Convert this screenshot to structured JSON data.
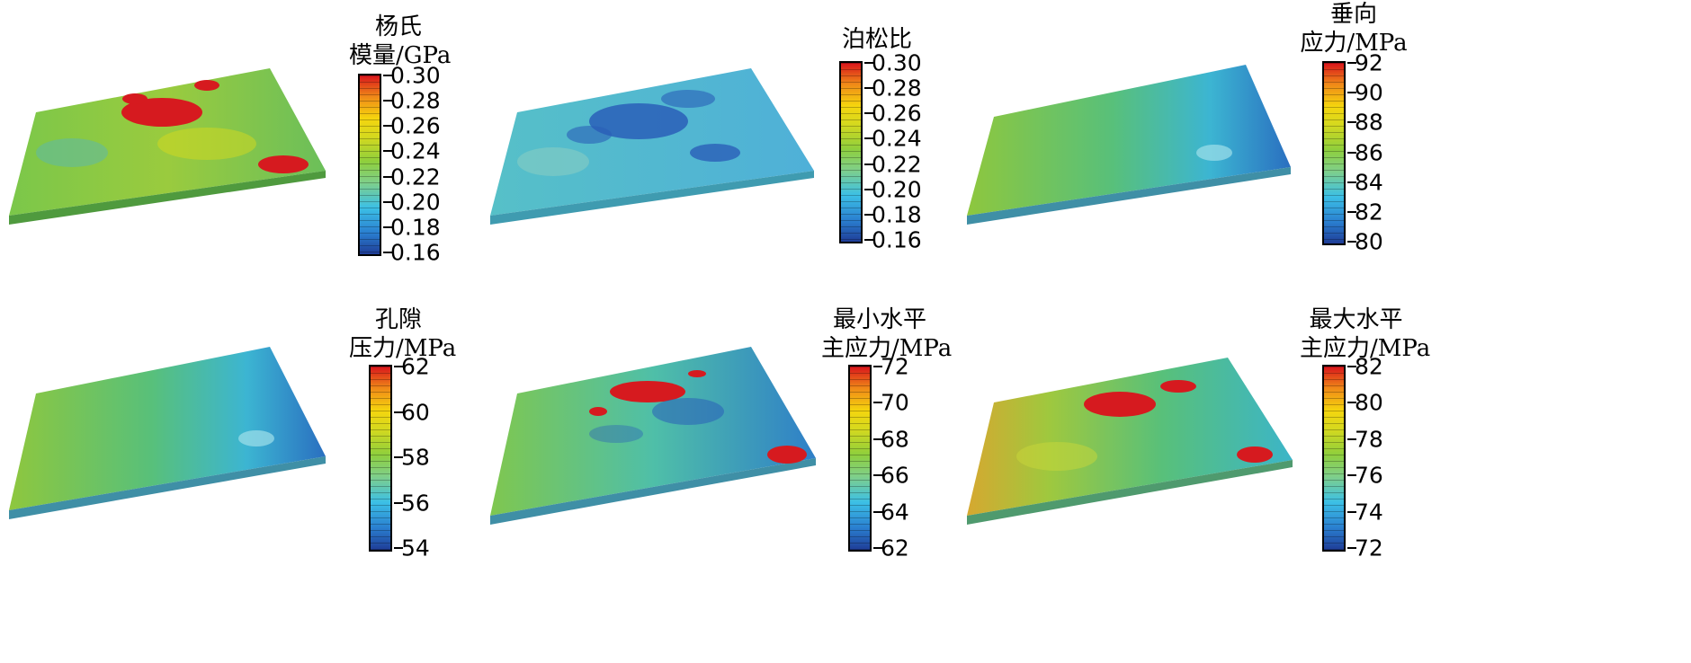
{
  "panels": [
    {
      "id": "youngs-modulus",
      "title_lines": [
        "杨氏",
        "模量/GPa"
      ],
      "ticks": [
        "0.30",
        "0.28",
        "0.26",
        "0.24",
        "0.22",
        "0.20",
        "0.18",
        "0.16"
      ],
      "field": "patchy-high"
    },
    {
      "id": "poisson-ratio",
      "title_lines": [
        "泊松比"
      ],
      "ticks": [
        "0.30",
        "0.28",
        "0.26",
        "0.24",
        "0.22",
        "0.20",
        "0.18",
        "0.16"
      ],
      "field": "patchy-low"
    },
    {
      "id": "vertical-stress",
      "title_lines": [
        "垂向",
        "应力/MPa"
      ],
      "ticks": [
        "92",
        "90",
        "88",
        "86",
        "84",
        "82",
        "80"
      ],
      "field": "smooth-gradient"
    },
    {
      "id": "pore-pressure",
      "title_lines": [
        "孔隙",
        "压力/MPa"
      ],
      "ticks": [
        "62",
        "60",
        "58",
        "56",
        "54"
      ],
      "field": "smooth-gradient"
    },
    {
      "id": "min-horizontal-stress",
      "title_lines": [
        "最小水平",
        "主应力/MPa"
      ],
      "ticks": [
        "72",
        "70",
        "68",
        "66",
        "64",
        "62"
      ],
      "field": "patchy-mixed"
    },
    {
      "id": "max-horizontal-stress",
      "title_lines": [
        "最大水平",
        "主应力/MPa"
      ],
      "ticks": [
        "82",
        "80",
        "78",
        "76",
        "74",
        "72"
      ],
      "field": "patchy-high"
    }
  ]
}
